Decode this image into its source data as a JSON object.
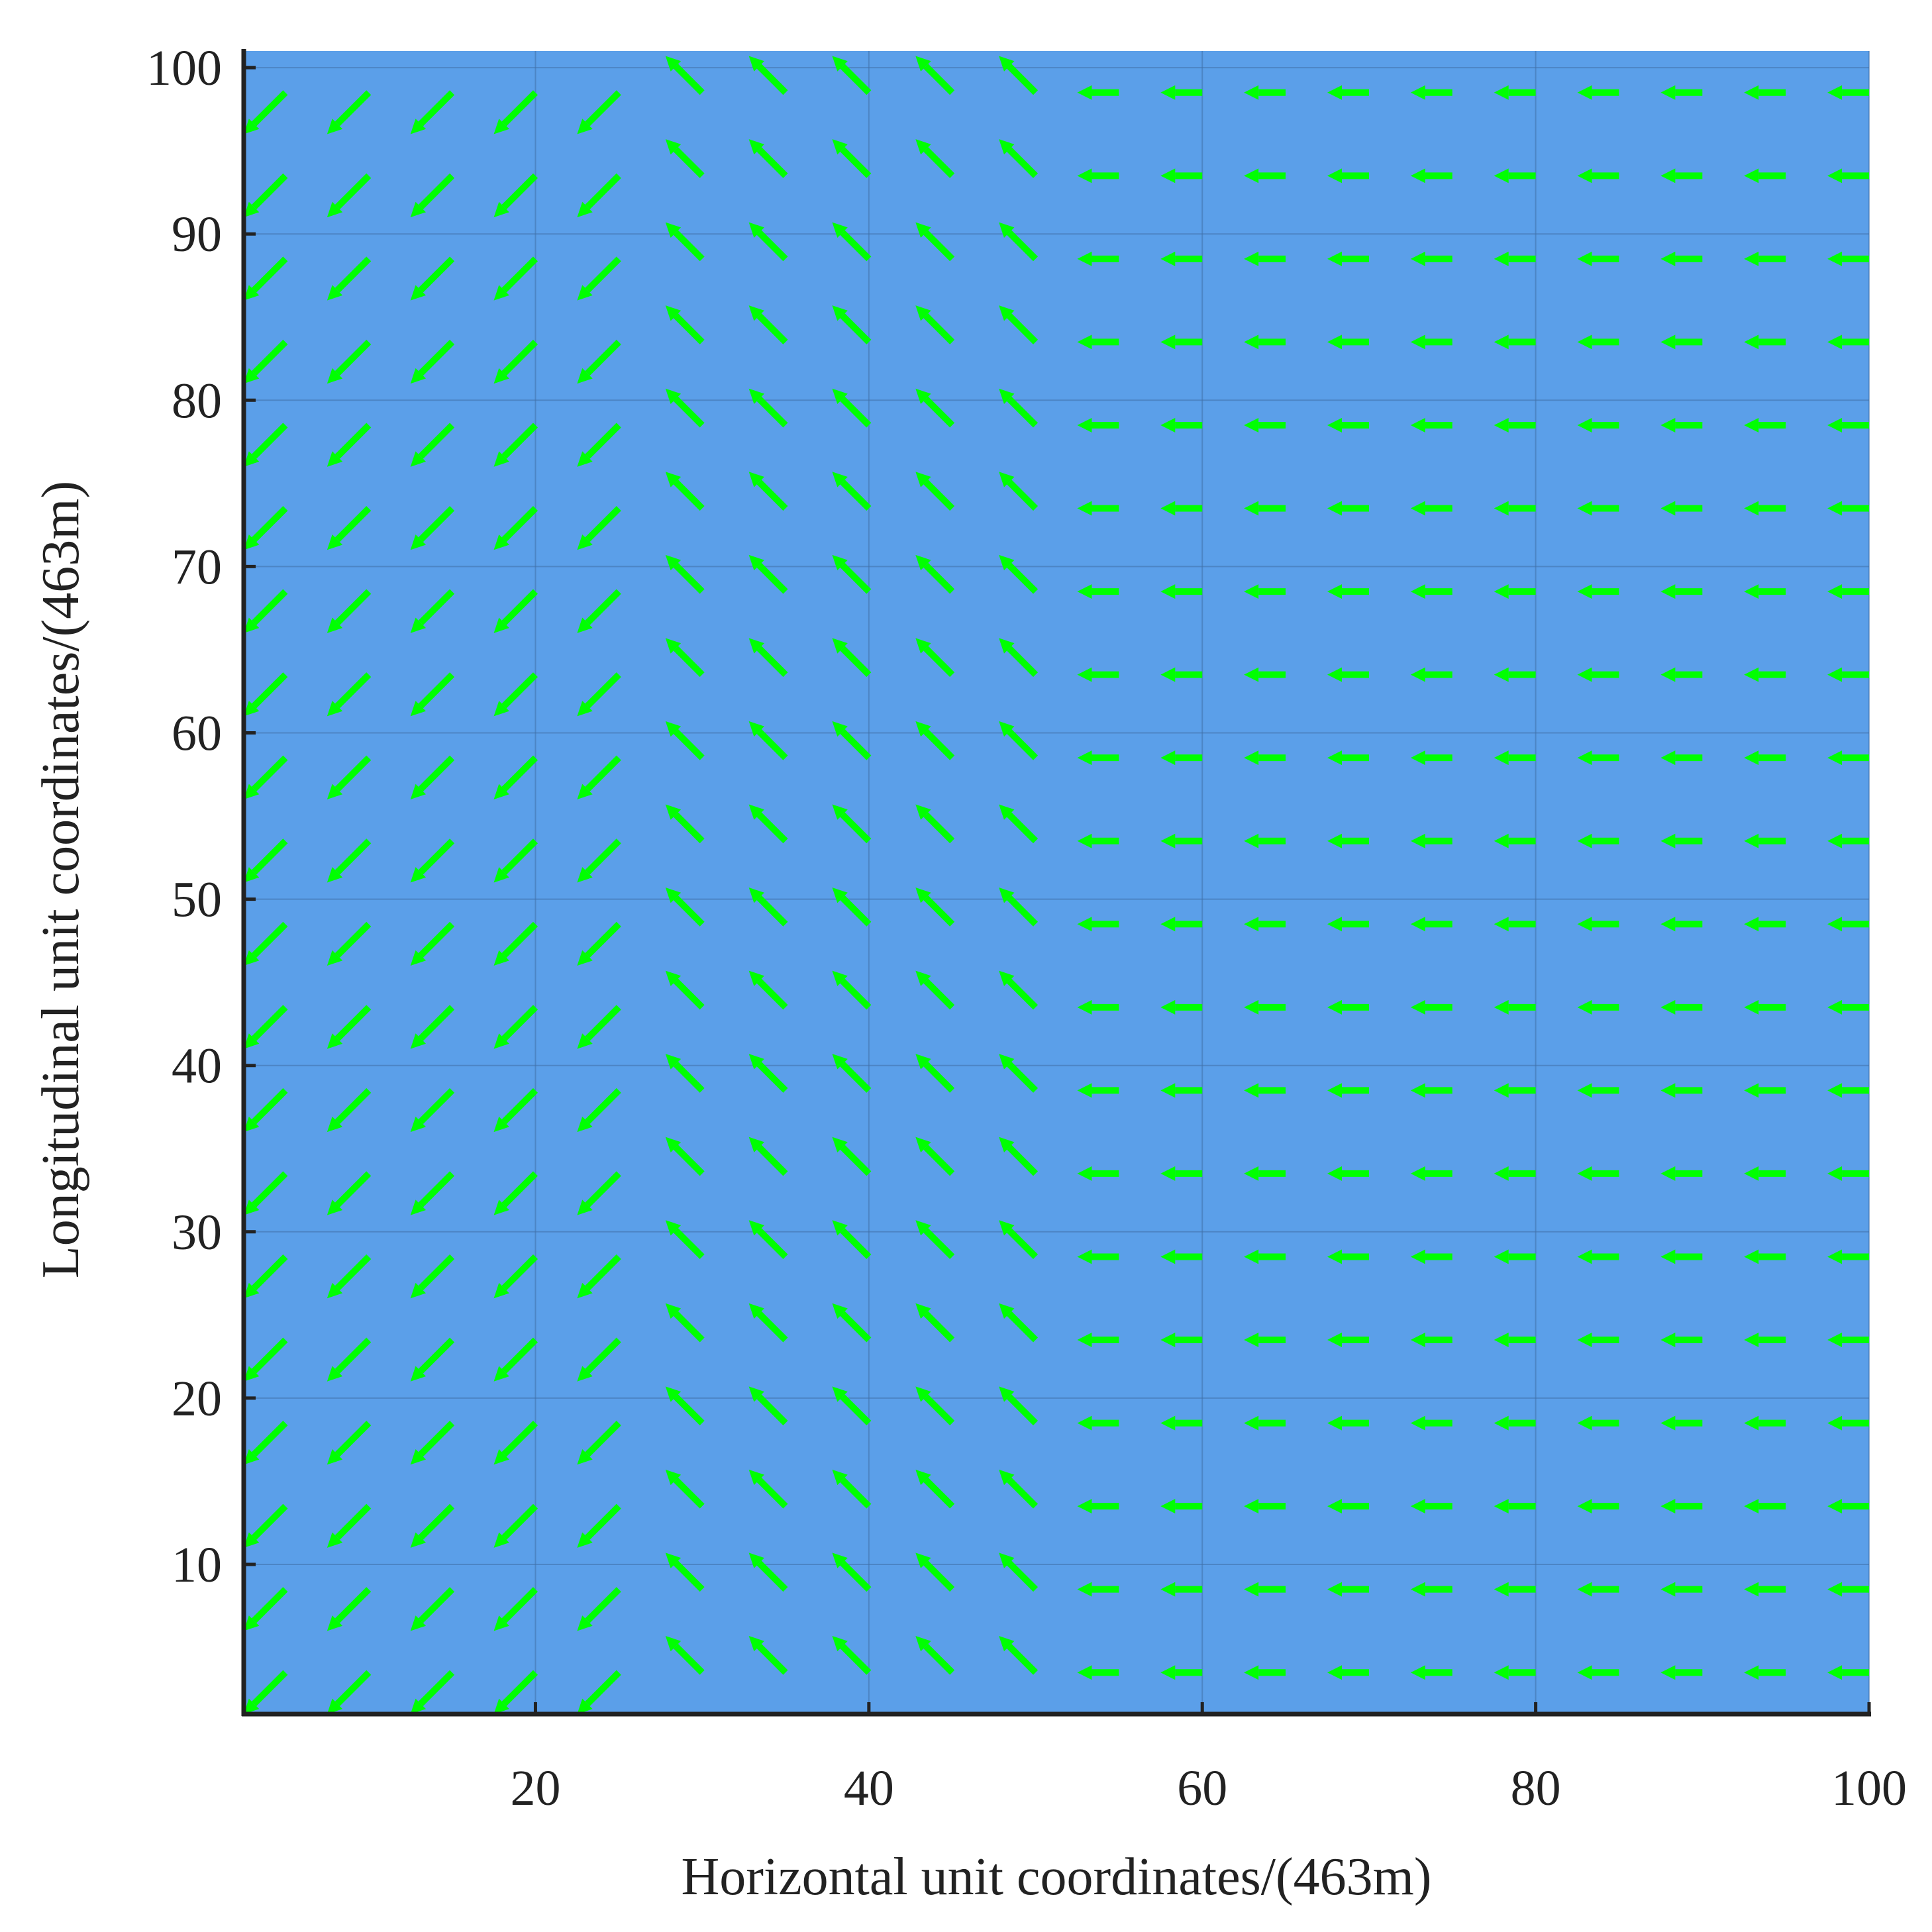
{
  "chart_data": {
    "type": "quiver",
    "xlabel": "Horizontal unit coordinates/(463m)",
    "ylabel": "Longitudinal unit coordinates/(463m)",
    "x": [
      5,
      10,
      15,
      20,
      25,
      30,
      35,
      40,
      45,
      50,
      55,
      60,
      65,
      70,
      75,
      80,
      85,
      90,
      95,
      100
    ],
    "y": [
      3.5,
      8.5,
      13.5,
      18.5,
      23.5,
      28.5,
      33.5,
      38.5,
      43.5,
      48.5,
      53.5,
      58.5,
      63.5,
      68.5,
      73.5,
      78.5,
      83.5,
      88.5,
      93.5,
      98.5
    ],
    "u": [
      -2.5,
      -2.5,
      -2.5,
      -2.5,
      -2.5,
      -2.2,
      -2.2,
      -2.2,
      -2.2,
      -2.2,
      -2.5,
      -2.5,
      -2.5,
      -2.5,
      -2.5,
      -2.5,
      -2.5,
      -2.5,
      -2.5,
      -2.5
    ],
    "v": [
      -2.5,
      -2.5,
      -2.5,
      -2.5,
      -2.5,
      2.2,
      2.2,
      2.2,
      2.2,
      2.2,
      0,
      0,
      0,
      0,
      0,
      0,
      0,
      0,
      0,
      0
    ],
    "color": "#00ff00",
    "background": "#5b9fe9",
    "xlim": [
      2.5,
      100
    ],
    "ylim": [
      1,
      101
    ],
    "xticks": [
      20,
      40,
      60,
      80,
      100
    ],
    "yticks": [
      10,
      20,
      30,
      40,
      50,
      60,
      70,
      80,
      90,
      100
    ],
    "grid": true
  }
}
